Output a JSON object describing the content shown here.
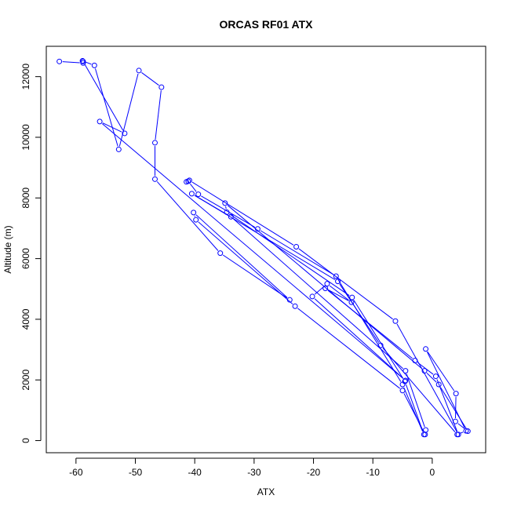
{
  "chart_data": {
    "type": "line",
    "title": "ORCAS RF01 ATX",
    "xlabel": "ATX",
    "ylabel": "Altitude (m)",
    "xlim": [
      -65,
      9
    ],
    "ylim": [
      -400,
      13000
    ],
    "xticks": [
      -60,
      -50,
      -40,
      -30,
      -20,
      -10,
      0
    ],
    "yticks": [
      0,
      2000,
      4000,
      6000,
      8000,
      10000,
      12000
    ],
    "grid": false,
    "series": [
      {
        "color": "#0000ff",
        "points": [
          [
            -62.8,
            12500
          ],
          [
            -58.8,
            12450
          ],
          [
            -58.9,
            12520
          ],
          [
            -56.9,
            12370
          ],
          [
            -52.8,
            9600
          ],
          [
            -49.4,
            12200
          ],
          [
            -45.6,
            11650
          ],
          [
            -46.7,
            9820
          ],
          [
            -46.7,
            8620
          ],
          [
            -35.7,
            6180
          ],
          [
            -24.0,
            4640
          ],
          [
            -40.2,
            7520
          ],
          [
            -39.8,
            7280
          ],
          [
            -23.1,
            4430
          ],
          [
            -5.0,
            1650
          ],
          [
            -1.2,
            200
          ],
          [
            -1.1,
            350
          ],
          [
            -4.5,
            2300
          ],
          [
            -33.9,
            7380
          ],
          [
            -40.5,
            8140
          ],
          [
            -15.9,
            5250
          ],
          [
            -8.7,
            3140
          ],
          [
            4.2,
            200
          ],
          [
            5.7,
            320
          ],
          [
            -1.1,
            3020
          ],
          [
            4.0,
            1550
          ],
          [
            3.9,
            630
          ],
          [
            6.0,
            310
          ],
          [
            1.1,
            1850
          ],
          [
            -1.3,
            2300
          ],
          [
            -34.9,
            7830
          ],
          [
            -34.6,
            7530
          ],
          [
            -13.5,
            4720
          ],
          [
            -4.6,
            1950
          ],
          [
            -1.4,
            200
          ],
          [
            -5.0,
            1850
          ],
          [
            -16.2,
            5420
          ],
          [
            -29.4,
            6980
          ],
          [
            -39.4,
            8120
          ],
          [
            -41.1,
            8550
          ],
          [
            -41.4,
            8530
          ],
          [
            -40.9,
            8580
          ],
          [
            -22.9,
            6390
          ],
          [
            -6.2,
            3940
          ],
          [
            4.4,
            200
          ],
          [
            0.6,
            2120
          ],
          [
            -2.9,
            2640
          ],
          [
            -18.0,
            5020
          ],
          [
            -13.6,
            4560
          ],
          [
            -17.7,
            5170
          ],
          [
            -20.2,
            4750
          ],
          [
            -4.5,
            1980
          ],
          [
            -56.0,
            10520
          ],
          [
            -51.8,
            10130
          ],
          [
            -58.8,
            12500
          ]
        ]
      }
    ]
  }
}
